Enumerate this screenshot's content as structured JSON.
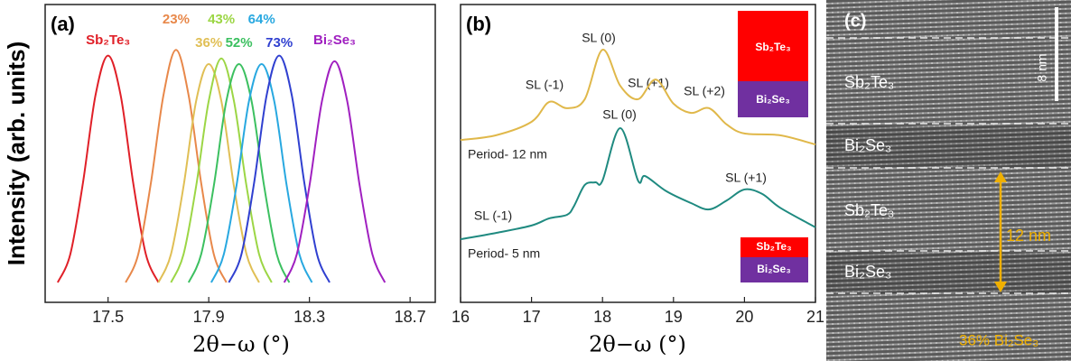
{
  "chart_data": [
    {
      "type": "line",
      "panel_label": "(a)",
      "y_label": "Intensity (arb. units)",
      "x_label": "2θ−ω (°)",
      "xlim": [
        17.25,
        18.8
      ],
      "xticks": [
        17.5,
        17.9,
        18.3,
        18.7
      ],
      "ylim": [
        -0.05,
        1
      ],
      "series": [
        {
          "name": "Sb₂Te₃",
          "color": "#e02028",
          "x": [
            17.3,
            17.35,
            17.4,
            17.45,
            17.5,
            17.55,
            17.6,
            17.65,
            17.7
          ],
          "values": [
            0.02,
            0.12,
            0.37,
            0.68,
            0.82,
            0.68,
            0.37,
            0.12,
            0.02
          ]
        },
        {
          "name": "23%",
          "color": "#e8884a",
          "x": [
            17.57,
            17.62,
            17.67,
            17.72,
            17.77,
            17.82,
            17.87,
            17.92,
            17.97
          ],
          "values": [
            0.02,
            0.12,
            0.37,
            0.68,
            0.84,
            0.68,
            0.37,
            0.12,
            0.02
          ]
        },
        {
          "name": "36%",
          "color": "#e0bf55",
          "x": [
            17.7,
            17.75,
            17.8,
            17.85,
            17.9,
            17.95,
            18.0,
            18.05,
            18.1
          ],
          "values": [
            0.02,
            0.12,
            0.36,
            0.66,
            0.79,
            0.66,
            0.36,
            0.12,
            0.02
          ]
        },
        {
          "name": "43%",
          "color": "#9cd645",
          "x": [
            17.75,
            17.8,
            17.85,
            17.9,
            17.95,
            18.0,
            18.05,
            18.1,
            18.15
          ],
          "values": [
            0.02,
            0.12,
            0.36,
            0.66,
            0.81,
            0.66,
            0.36,
            0.12,
            0.02
          ]
        },
        {
          "name": "52%",
          "color": "#3cc060",
          "x": [
            17.82,
            17.87,
            17.92,
            17.97,
            18.02,
            18.07,
            18.12,
            18.17,
            18.22
          ],
          "values": [
            0.02,
            0.12,
            0.36,
            0.66,
            0.79,
            0.66,
            0.36,
            0.12,
            0.02
          ]
        },
        {
          "name": "64%",
          "color": "#28a8e0",
          "x": [
            17.91,
            17.96,
            18.01,
            18.06,
            18.11,
            18.16,
            18.21,
            18.26,
            18.31
          ],
          "values": [
            0.02,
            0.12,
            0.36,
            0.66,
            0.79,
            0.66,
            0.36,
            0.12,
            0.02
          ]
        },
        {
          "name": "73%",
          "color": "#3040d0",
          "x": [
            17.98,
            18.03,
            18.08,
            18.13,
            18.18,
            18.23,
            18.28,
            18.33,
            18.38
          ],
          "values": [
            0.02,
            0.12,
            0.37,
            0.68,
            0.82,
            0.68,
            0.37,
            0.12,
            0.02
          ]
        },
        {
          "name": "Bi₂Se₃",
          "color": "#a020c0",
          "x": [
            18.2,
            18.25,
            18.3,
            18.35,
            18.4,
            18.45,
            18.5,
            18.55,
            18.6
          ],
          "values": [
            0.02,
            0.12,
            0.36,
            0.66,
            0.8,
            0.66,
            0.36,
            0.12,
            0.02
          ]
        }
      ]
    },
    {
      "type": "line",
      "panel_label": "(b)",
      "x_label": "2θ−ω (°)",
      "xlim": [
        16,
        21
      ],
      "xticks": [
        16,
        17,
        18,
        19,
        20,
        21
      ],
      "ylim": [
        0,
        1
      ],
      "series": [
        {
          "color": "#e0b84a",
          "x": [
            16,
            16.5,
            17,
            17.25,
            17.5,
            17.75,
            18,
            18.25,
            18.5,
            18.75,
            19,
            19.25,
            19.5,
            19.75,
            20,
            20.5,
            21
          ],
          "values": [
            0.545,
            0.561,
            0.606,
            0.673,
            0.652,
            0.682,
            0.848,
            0.727,
            0.682,
            0.748,
            0.667,
            0.636,
            0.652,
            0.597,
            0.567,
            0.561,
            0.53
          ]
        },
        {
          "color": "#1f8a80",
          "x": [
            16,
            16.5,
            17,
            17.25,
            17.5,
            17.6,
            17.75,
            17.9,
            18,
            18.25,
            18.5,
            18.6,
            18.9,
            19.25,
            19.5,
            19.75,
            20,
            20.25,
            20.5,
            21
          ],
          "values": [
            0.212,
            0.233,
            0.258,
            0.282,
            0.294,
            0.324,
            0.394,
            0.403,
            0.409,
            0.585,
            0.409,
            0.424,
            0.373,
            0.333,
            0.312,
            0.342,
            0.379,
            0.364,
            0.318,
            0.252
          ]
        }
      ],
      "annotations": [
        "SL (0)",
        "SL (-1)",
        "SL (+1)",
        "SL (+2)",
        "Period- 12 nm",
        "SL (0)",
        "SL (-1)",
        "SL (+1)",
        "Period- 5 nm"
      ],
      "inset_labels": [
        "Sb₂Te₃",
        "Bi₂Se₃",
        "Sb₂Te₃",
        "Bi₂Se₃"
      ]
    }
  ],
  "tem_image": {
    "panel_label": "(c)",
    "layers": [
      "Sb₂Te₃",
      "Bi₂Se₃",
      "Sb₂Te₃",
      "Bi₂Se₃"
    ],
    "scale_bar": "8 nm",
    "period": "12 nm",
    "composition": "36% Bi₂Se₃"
  }
}
